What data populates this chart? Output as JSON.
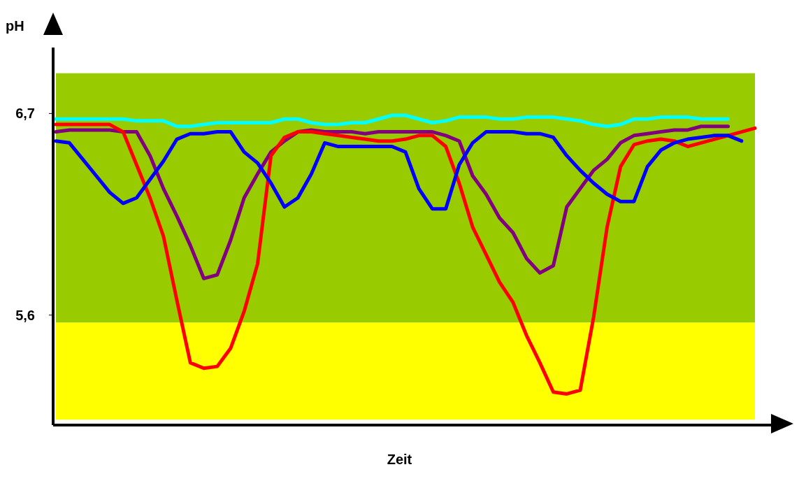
{
  "chart_data": {
    "type": "line",
    "xlabel": "Zeit",
    "ylabel": "pH",
    "categories": [
      null,
      null,
      null,
      null,
      null,
      null,
      null,
      null,
      null,
      null,
      null,
      null,
      null,
      null,
      null,
      null,
      null,
      null,
      null,
      null,
      null,
      null,
      null,
      null,
      null,
      null,
      null,
      null,
      null,
      null,
      null,
      null,
      null,
      null,
      null,
      null,
      null,
      null,
      null,
      null,
      null,
      null,
      null,
      null,
      null,
      null,
      null,
      null,
      null,
      null,
      null,
      null,
      null
    ],
    "ylim": [
      5.0,
      7.06
    ],
    "yticks": [
      {
        "value": 6.7,
        "label": "6,7"
      },
      {
        "value": 5.6,
        "label": "5,6"
      }
    ],
    "bands": [
      {
        "axis": "y",
        "from": 5.03,
        "to": 5.56,
        "color": "#ffff00"
      },
      {
        "axis": "y",
        "from": 5.56,
        "to": 6.92,
        "color": "#99cc00"
      }
    ],
    "grid": false,
    "marker": "none",
    "line_style": "solid",
    "series": [
      {
        "color": "#00ffff",
        "values": [
          6.67,
          6.67,
          6.67,
          6.67,
          6.67,
          6.67,
          6.66,
          6.66,
          6.66,
          6.63,
          6.63,
          6.64,
          6.65,
          6.65,
          6.65,
          6.65,
          6.65,
          6.67,
          6.67,
          6.65,
          6.64,
          6.64,
          6.65,
          6.65,
          6.67,
          6.69,
          6.69,
          6.67,
          6.65,
          6.66,
          6.68,
          6.68,
          6.68,
          6.67,
          6.67,
          6.68,
          6.68,
          6.68,
          6.67,
          6.66,
          6.64,
          6.63,
          6.64,
          6.67,
          6.67,
          6.68,
          6.68,
          6.68,
          6.67,
          6.67,
          6.67,
          null,
          null
        ]
      },
      {
        "color": "#800080",
        "values": [
          6.6,
          6.61,
          6.61,
          6.61,
          6.61,
          6.6,
          6.6,
          6.47,
          6.29,
          6.14,
          5.98,
          5.8,
          5.82,
          6.01,
          6.24,
          6.37,
          6.49,
          6.55,
          6.6,
          6.61,
          6.6,
          6.6,
          6.6,
          6.59,
          6.6,
          6.6,
          6.6,
          6.6,
          6.6,
          6.58,
          6.55,
          6.36,
          6.26,
          6.13,
          6.05,
          5.91,
          5.83,
          5.87,
          6.19,
          6.29,
          6.39,
          6.45,
          6.54,
          6.58,
          6.59,
          6.6,
          6.61,
          6.61,
          6.63,
          6.63,
          6.63,
          null,
          null
        ]
      },
      {
        "color": "#ff0000",
        "values": [
          6.64,
          6.64,
          6.64,
          6.64,
          6.64,
          6.6,
          6.42,
          6.24,
          6.03,
          5.68,
          5.34,
          5.31,
          5.32,
          5.42,
          5.62,
          5.88,
          6.47,
          6.57,
          6.6,
          6.6,
          6.59,
          6.58,
          6.57,
          6.56,
          6.55,
          6.55,
          6.56,
          6.58,
          6.58,
          6.52,
          6.32,
          6.08,
          5.93,
          5.78,
          5.67,
          5.49,
          5.34,
          5.18,
          5.17,
          5.19,
          5.59,
          6.08,
          6.41,
          6.53,
          6.55,
          6.56,
          6.55,
          6.52,
          6.54,
          6.56,
          6.58,
          6.6,
          6.62
        ]
      },
      {
        "color": "#0000ff",
        "values": [
          6.55,
          6.54,
          6.45,
          6.36,
          6.27,
          6.21,
          6.24,
          6.34,
          6.44,
          6.56,
          6.59,
          6.59,
          6.6,
          6.6,
          6.49,
          6.43,
          6.32,
          6.19,
          6.24,
          6.37,
          6.54,
          6.52,
          6.52,
          6.52,
          6.52,
          6.52,
          6.49,
          6.29,
          6.18,
          6.18,
          6.42,
          6.54,
          6.6,
          6.6,
          6.6,
          6.59,
          6.59,
          6.57,
          6.47,
          6.39,
          6.32,
          6.26,
          6.22,
          6.22,
          6.41,
          6.5,
          6.54,
          6.56,
          6.57,
          6.58,
          6.58,
          6.55,
          null
        ]
      }
    ]
  }
}
